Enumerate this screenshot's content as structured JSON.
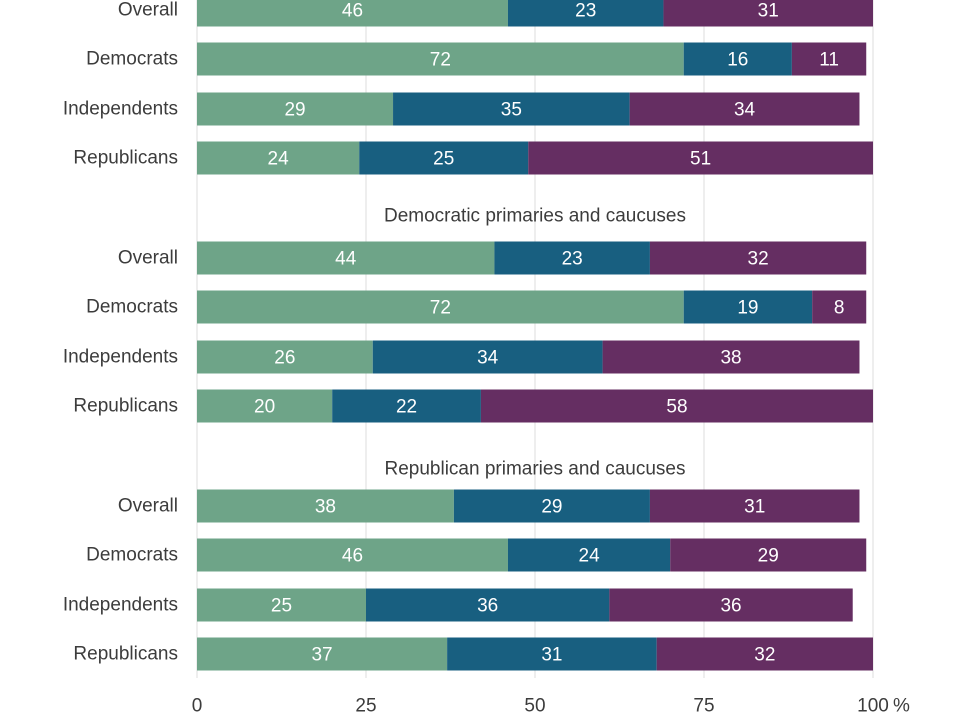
{
  "chart_data": {
    "type": "bar",
    "orientation": "horizontal",
    "stacked": true,
    "xlim": [
      0,
      100
    ],
    "xticks": [
      "0",
      "25",
      "50",
      "75",
      "100"
    ],
    "x_unit": "%",
    "grid": true,
    "colors": [
      "#6ea488",
      "#185f80",
      "#652e62"
    ],
    "groups": [
      {
        "title": "",
        "rows": [
          {
            "label": "Overall",
            "values": [
              46,
              23,
              31
            ]
          },
          {
            "label": "Democrats",
            "values": [
              72,
              16,
              11
            ]
          },
          {
            "label": "Independents",
            "values": [
              29,
              35,
              34
            ]
          },
          {
            "label": "Republicans",
            "values": [
              24,
              25,
              51
            ]
          }
        ]
      },
      {
        "title": "Democratic primaries and caucuses",
        "rows": [
          {
            "label": "Overall",
            "values": [
              44,
              23,
              32
            ]
          },
          {
            "label": "Democrats",
            "values": [
              72,
              19,
              8
            ]
          },
          {
            "label": "Independents",
            "values": [
              26,
              34,
              38
            ]
          },
          {
            "label": "Republicans",
            "values": [
              20,
              22,
              58
            ]
          }
        ]
      },
      {
        "title": "Republican primaries and caucuses",
        "rows": [
          {
            "label": "Overall",
            "values": [
              38,
              29,
              31
            ]
          },
          {
            "label": "Democrats",
            "values": [
              46,
              24,
              29
            ]
          },
          {
            "label": "Independents",
            "values": [
              25,
              36,
              36
            ]
          },
          {
            "label": "Republicans",
            "values": [
              37,
              31,
              32
            ]
          }
        ]
      }
    ]
  }
}
